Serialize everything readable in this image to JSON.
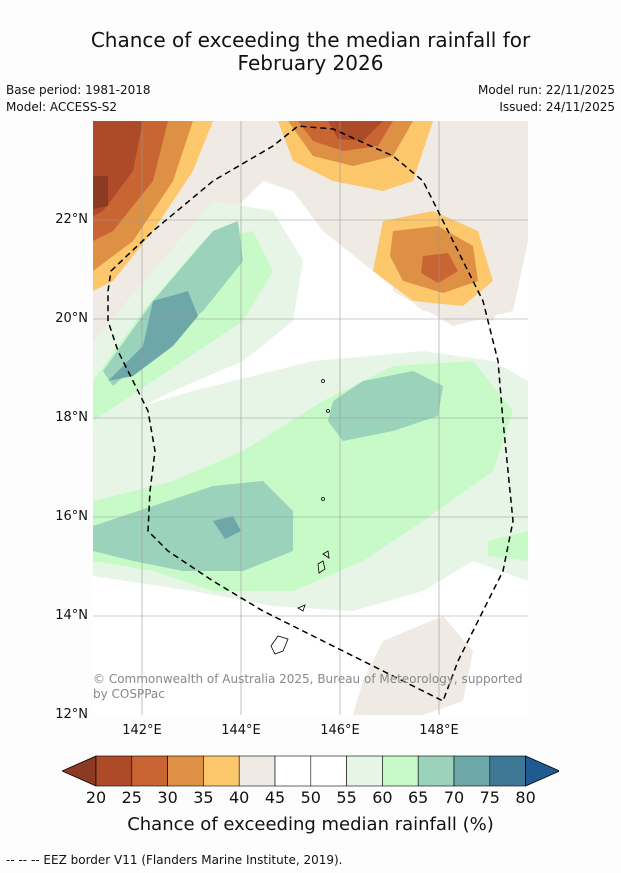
{
  "title_line1": "Chance of exceeding the median rainfall for",
  "title_line2": "February 2026",
  "base_period": "Base period: 1981-2018",
  "model": "Model: ACCESS-S2",
  "model_run": "Model run: 22/11/2025",
  "issued": "Issued: 24/11/2025",
  "y_ticks": [
    "22°N",
    "20°N",
    "18°N",
    "16°N",
    "14°N",
    "12°N"
  ],
  "x_ticks": [
    "142°E",
    "144°E",
    "146°E",
    "148°E"
  ],
  "copyright_line1": "© Commonwealth of Australia 2025, Bureau of Meteorology, supported",
  "copyright_line2": "by COSPPac",
  "colorbar": {
    "labels": [
      "20",
      "25",
      "30",
      "35",
      "40",
      "45",
      "50",
      "55",
      "60",
      "65",
      "70",
      "75",
      "80"
    ],
    "title": "Chance of exceeding median rainfall (%)",
    "colors": [
      "#8c3a22",
      "#ad4a28",
      "#c96533",
      "#de9044",
      "#fdc76c",
      "#efebe4",
      "#ffffff",
      "#ffffff",
      "#e6f5e6",
      "#c8fac8",
      "#9ad2bc",
      "#6ea7a8",
      "#3f7896",
      "#1f5b91"
    ]
  },
  "footer": "--  --  -- EEZ border V11 (Flanders Marine Institute, 2019)."
}
